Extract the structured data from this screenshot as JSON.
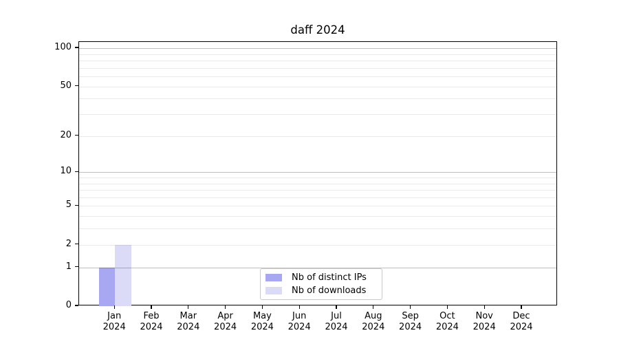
{
  "chart_data": {
    "type": "bar",
    "title": "daff 2024",
    "x_axis": {
      "categories": [
        {
          "month": "Jan",
          "year": "2024"
        },
        {
          "month": "Feb",
          "year": "2024"
        },
        {
          "month": "Mar",
          "year": "2024"
        },
        {
          "month": "Apr",
          "year": "2024"
        },
        {
          "month": "May",
          "year": "2024"
        },
        {
          "month": "Jun",
          "year": "2024"
        },
        {
          "month": "Jul",
          "year": "2024"
        },
        {
          "month": "Aug",
          "year": "2024"
        },
        {
          "month": "Sep",
          "year": "2024"
        },
        {
          "month": "Oct",
          "year": "2024"
        },
        {
          "month": "Nov",
          "year": "2024"
        },
        {
          "month": "Dec",
          "year": "2024"
        }
      ]
    },
    "series": [
      {
        "name": "Nb of distinct IPs",
        "color": "#a7a7f2",
        "values": [
          1,
          0,
          0,
          0,
          0,
          0,
          0,
          0,
          0,
          0,
          0,
          0
        ]
      },
      {
        "name": "Nb of downloads",
        "color": "#dbdbf8",
        "values": [
          2,
          0,
          0,
          0,
          0,
          0,
          0,
          0,
          0,
          0,
          0,
          0
        ]
      }
    ],
    "y_axis": {
      "scale": "log1p",
      "ticks": [
        0,
        1,
        2,
        5,
        10,
        20,
        50,
        100
      ],
      "major_gridlines": [
        1,
        10,
        100
      ],
      "minor_gridlines": [
        2,
        3,
        4,
        5,
        6,
        7,
        8,
        9,
        20,
        30,
        40,
        50,
        60,
        70,
        80,
        90
      ],
      "ylim": [
        0,
        112
      ]
    },
    "grid": {
      "major_color": "rgba(0,0,0,0.25)",
      "minor_color": "rgba(0,0,0,0.085)"
    },
    "legend": {
      "position": "bottom-center-inside",
      "items": [
        "Nb of distinct IPs",
        "Nb of downloads"
      ]
    }
  }
}
